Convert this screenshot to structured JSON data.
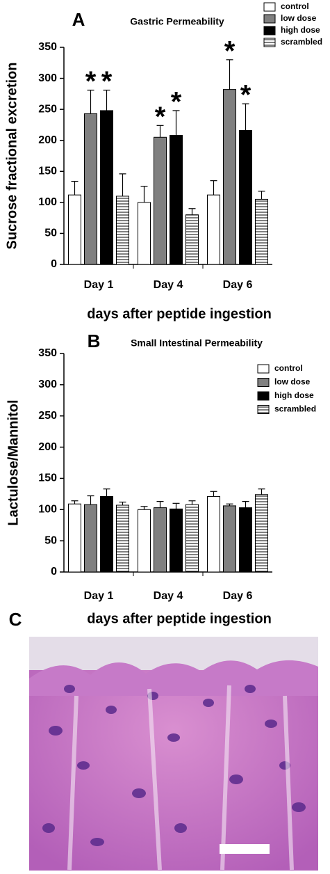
{
  "chart_data": [
    {
      "type": "bar",
      "panel_label": "A",
      "title": "Gastric Permeability",
      "y_label": "Sucrose fractional excretion",
      "x_label": "days after peptide ingestion",
      "categories": [
        "Day 1",
        "Day 4",
        "Day 6"
      ],
      "series": [
        {
          "name": "control",
          "color": "#ffffff",
          "values": [
            112,
            100,
            112
          ],
          "errors": [
            22,
            26,
            23
          ]
        },
        {
          "name": "low dose",
          "color": "#808080",
          "values": [
            243,
            205,
            282
          ],
          "errors": [
            38,
            19,
            48
          ],
          "significance": [
            "*",
            "*",
            "*"
          ]
        },
        {
          "name": "high dose",
          "color": "#000000",
          "values": [
            248,
            208,
            216
          ],
          "errors": [
            33,
            40,
            43
          ],
          "significance": [
            "*",
            "*",
            "*"
          ]
        },
        {
          "name": "scrambled",
          "color": "#ffffff",
          "hatch": "horizontal",
          "values": [
            110,
            80,
            105
          ],
          "errors": [
            36,
            10,
            13
          ]
        }
      ],
      "ylim": [
        0,
        350
      ],
      "yticks": [
        0,
        50,
        100,
        150,
        200,
        250,
        300,
        350
      ],
      "legend": "top-right"
    },
    {
      "type": "bar",
      "panel_label": "B",
      "title": "Small Intestinal Permeability",
      "y_label": "Lactulose/Mannitol",
      "x_label": "days after peptide ingestion",
      "categories": [
        "Day 1",
        "Day 4",
        "Day 6"
      ],
      "series": [
        {
          "name": "control",
          "color": "#ffffff",
          "values": [
            109,
            100,
            121
          ],
          "errors": [
            5,
            5,
            8
          ]
        },
        {
          "name": "low dose",
          "color": "#808080",
          "values": [
            108,
            103,
            106
          ],
          "errors": [
            14,
            10,
            3
          ]
        },
        {
          "name": "high dose",
          "color": "#000000",
          "values": [
            121,
            101,
            103
          ],
          "errors": [
            12,
            9,
            10
          ]
        },
        {
          "name": "scrambled",
          "color": "#ffffff",
          "hatch": "horizontal",
          "values": [
            107,
            108,
            124
          ],
          "errors": [
            5,
            6,
            9
          ]
        }
      ],
      "ylim": [
        0,
        350
      ],
      "yticks": [
        0,
        50,
        100,
        150,
        200,
        250,
        300,
        350
      ],
      "legend": "top-right"
    }
  ],
  "image_panel": {
    "label": "C"
  }
}
